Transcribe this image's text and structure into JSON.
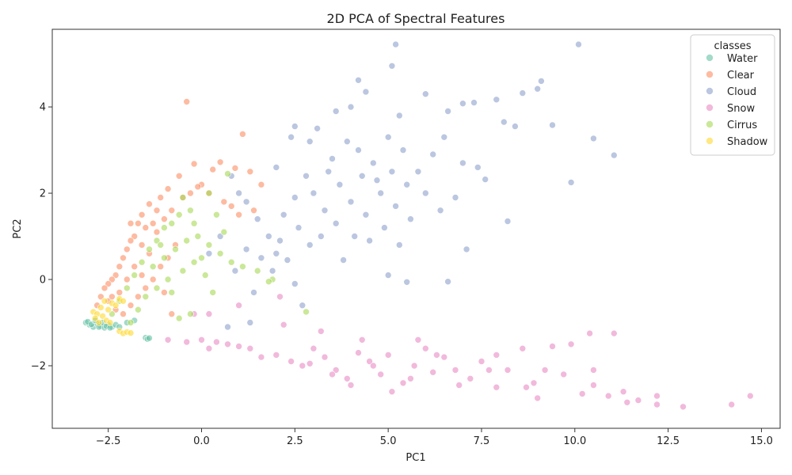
{
  "chart_data": {
    "type": "scatter",
    "title": "2D PCA of Spectral Features",
    "xlabel": "PC1",
    "ylabel": "PC2",
    "xlim": [
      -4.0,
      15.5
    ],
    "ylim": [
      -3.45,
      5.8
    ],
    "xticks": [
      -2.5,
      0.0,
      2.5,
      5.0,
      7.5,
      10.0,
      12.5,
      15.0
    ],
    "xtick_labels": [
      "−2.5",
      "0.0",
      "2.5",
      "5.0",
      "7.5",
      "10.0",
      "12.5",
      "15.0"
    ],
    "yticks": [
      -2,
      0,
      2,
      4
    ],
    "ytick_labels": [
      "−2",
      "0",
      "2",
      "4"
    ],
    "grid": false,
    "legend": {
      "title": "classes",
      "placement": "top-right"
    },
    "series": [
      {
        "name": "Water",
        "color": "#66c2a5",
        "points": [
          [
            -3.1,
            -1.0
          ],
          [
            -3.0,
            -1.05
          ],
          [
            -2.9,
            -1.1
          ],
          [
            -2.8,
            -1.02
          ],
          [
            -2.7,
            -1.08
          ],
          [
            -2.6,
            -1.12
          ],
          [
            -2.5,
            -1.05
          ],
          [
            -2.4,
            -1.1
          ],
          [
            -3.05,
            -0.98
          ],
          [
            -2.95,
            -1.04
          ],
          [
            -2.85,
            -0.95
          ],
          [
            -2.75,
            -1.1
          ],
          [
            -2.65,
            -1.0
          ],
          [
            -2.55,
            -1.08
          ],
          [
            -2.45,
            -1.12
          ],
          [
            -2.3,
            -1.05
          ],
          [
            -2.2,
            -1.1
          ],
          [
            -1.5,
            -1.35
          ],
          [
            -1.45,
            -1.38
          ],
          [
            -1.4,
            -1.36
          ],
          [
            -2.0,
            -1.0
          ],
          [
            -1.8,
            -0.95
          ]
        ]
      },
      {
        "name": "Clear",
        "color": "#fc8d62",
        "points": [
          [
            -0.4,
            4.12
          ],
          [
            1.1,
            3.37
          ],
          [
            -0.2,
            2.68
          ],
          [
            0.5,
            2.72
          ],
          [
            0.3,
            2.55
          ],
          [
            0.9,
            2.58
          ],
          [
            1.3,
            2.5
          ],
          [
            1.6,
            2.2
          ],
          [
            0.0,
            2.2
          ],
          [
            -0.6,
            2.4
          ],
          [
            -0.9,
            2.1
          ],
          [
            -1.1,
            1.9
          ],
          [
            -1.2,
            1.6
          ],
          [
            -1.4,
            1.75
          ],
          [
            -1.6,
            1.5
          ],
          [
            -1.5,
            1.2
          ],
          [
            -1.7,
            1.3
          ],
          [
            -1.8,
            1.0
          ],
          [
            -1.9,
            0.9
          ],
          [
            -1.6,
            0.8
          ],
          [
            -1.4,
            0.6
          ],
          [
            -1.2,
            1.1
          ],
          [
            -1.0,
            1.4
          ],
          [
            -0.8,
            1.6
          ],
          [
            -0.5,
            1.9
          ],
          [
            -0.3,
            2.0
          ],
          [
            -0.1,
            2.15
          ],
          [
            0.2,
            2.0
          ],
          [
            0.6,
            1.8
          ],
          [
            0.8,
            1.7
          ],
          [
            1.0,
            1.5
          ],
          [
            1.4,
            1.6
          ],
          [
            -2.0,
            0.7
          ],
          [
            -2.1,
            0.5
          ],
          [
            -2.2,
            0.3
          ],
          [
            -2.3,
            0.1
          ],
          [
            -2.4,
            0.0
          ],
          [
            -2.5,
            -0.1
          ],
          [
            -2.6,
            -0.2
          ],
          [
            -2.7,
            -0.4
          ],
          [
            -2.8,
            -0.6
          ],
          [
            -2.5,
            -0.5
          ],
          [
            -2.3,
            -0.7
          ],
          [
            -2.1,
            -0.8
          ],
          [
            -1.9,
            -0.6
          ],
          [
            -1.7,
            -0.4
          ],
          [
            -1.5,
            -0.2
          ],
          [
            -1.3,
            0.0
          ],
          [
            -1.1,
            0.3
          ],
          [
            -0.9,
            0.5
          ],
          [
            -0.7,
            0.8
          ],
          [
            -1.0,
            -0.3
          ],
          [
            -0.8,
            -0.8
          ],
          [
            -2.0,
            0.0
          ],
          [
            -1.8,
            0.3
          ],
          [
            -1.6,
            0.1
          ],
          [
            -2.2,
            -0.3
          ],
          [
            -2.4,
            -0.4
          ],
          [
            -1.9,
            1.3
          ],
          [
            -1.3,
            1.3
          ]
        ]
      },
      {
        "name": "Cloud",
        "color": "#8da0cb",
        "points": [
          [
            5.2,
            5.45
          ],
          [
            10.1,
            5.45
          ],
          [
            5.1,
            4.95
          ],
          [
            4.2,
            4.62
          ],
          [
            9.1,
            4.6
          ],
          [
            4.4,
            4.35
          ],
          [
            6.0,
            4.3
          ],
          [
            7.3,
            4.1
          ],
          [
            7.0,
            4.08
          ],
          [
            9.0,
            4.42
          ],
          [
            4.0,
            4.0
          ],
          [
            8.6,
            4.32
          ],
          [
            3.6,
            3.9
          ],
          [
            5.3,
            3.8
          ],
          [
            6.6,
            3.9
          ],
          [
            7.9,
            4.17
          ],
          [
            8.1,
            3.65
          ],
          [
            8.4,
            3.55
          ],
          [
            9.4,
            3.58
          ],
          [
            10.5,
            3.27
          ],
          [
            11.05,
            2.88
          ],
          [
            9.9,
            2.25
          ],
          [
            7.6,
            2.32
          ],
          [
            8.2,
            1.35
          ],
          [
            7.1,
            0.7
          ],
          [
            6.6,
            -0.05
          ],
          [
            5.0,
            0.1
          ],
          [
            5.5,
            -0.06
          ],
          [
            3.8,
            0.45
          ],
          [
            2.3,
            0.45
          ],
          [
            1.4,
            -0.3
          ],
          [
            1.3,
            -1.0
          ],
          [
            0.7,
            -1.1
          ],
          [
            2.7,
            -0.6
          ],
          [
            2.5,
            -0.1
          ],
          [
            2.0,
            0.6
          ],
          [
            1.8,
            1.0
          ],
          [
            1.5,
            1.4
          ],
          [
            1.2,
            1.8
          ],
          [
            1.0,
            2.0
          ],
          [
            0.8,
            2.4
          ],
          [
            2.0,
            2.6
          ],
          [
            2.4,
            3.3
          ],
          [
            2.5,
            3.55
          ],
          [
            2.9,
            3.2
          ],
          [
            3.1,
            3.5
          ],
          [
            3.5,
            2.8
          ],
          [
            3.9,
            3.2
          ],
          [
            4.2,
            3.0
          ],
          [
            4.6,
            2.7
          ],
          [
            5.0,
            3.3
          ],
          [
            5.4,
            3.0
          ],
          [
            5.8,
            2.5
          ],
          [
            6.2,
            2.9
          ],
          [
            6.5,
            3.3
          ],
          [
            7.0,
            2.7
          ],
          [
            7.4,
            2.6
          ],
          [
            3.0,
            2.0
          ],
          [
            3.3,
            1.6
          ],
          [
            3.7,
            2.2
          ],
          [
            4.0,
            1.8
          ],
          [
            4.4,
            1.5
          ],
          [
            4.8,
            2.0
          ],
          [
            5.2,
            1.7
          ],
          [
            5.6,
            1.4
          ],
          [
            6.0,
            2.0
          ],
          [
            6.4,
            1.6
          ],
          [
            6.8,
            1.9
          ],
          [
            2.6,
            1.2
          ],
          [
            2.9,
            0.8
          ],
          [
            3.2,
            1.0
          ],
          [
            3.6,
            1.3
          ],
          [
            4.1,
            1.0
          ],
          [
            4.5,
            0.9
          ],
          [
            4.9,
            1.2
          ],
          [
            5.3,
            0.8
          ],
          [
            2.2,
            1.5
          ],
          [
            2.5,
            1.9
          ],
          [
            2.8,
            2.4
          ],
          [
            3.4,
            2.5
          ],
          [
            4.3,
            2.4
          ],
          [
            4.7,
            2.3
          ],
          [
            5.1,
            2.5
          ],
          [
            5.5,
            2.2
          ],
          [
            1.6,
            0.5
          ],
          [
            1.9,
            0.2
          ],
          [
            2.1,
            0.9
          ],
          [
            0.5,
            1.0
          ],
          [
            0.2,
            0.6
          ],
          [
            0.9,
            0.2
          ],
          [
            1.2,
            0.7
          ]
        ]
      },
      {
        "name": "Snow",
        "color": "#e78ac3",
        "points": [
          [
            14.7,
            -2.7
          ],
          [
            14.2,
            -2.9
          ],
          [
            12.9,
            -2.95
          ],
          [
            12.2,
            -2.9
          ],
          [
            12.2,
            -2.7
          ],
          [
            11.7,
            -2.8
          ],
          [
            11.4,
            -2.85
          ],
          [
            11.3,
            -2.6
          ],
          [
            10.9,
            -2.7
          ],
          [
            10.5,
            -2.45
          ],
          [
            10.5,
            -2.1
          ],
          [
            10.4,
            -1.25
          ],
          [
            11.05,
            -1.25
          ],
          [
            10.2,
            -2.65
          ],
          [
            9.9,
            -1.5
          ],
          [
            9.4,
            -1.55
          ],
          [
            9.0,
            -2.75
          ],
          [
            8.7,
            -2.5
          ],
          [
            8.2,
            -2.1
          ],
          [
            7.9,
            -1.75
          ],
          [
            7.5,
            -1.9
          ],
          [
            7.2,
            -2.3
          ],
          [
            6.8,
            -2.1
          ],
          [
            6.5,
            -1.8
          ],
          [
            6.0,
            -1.6
          ],
          [
            5.7,
            -2.0
          ],
          [
            5.4,
            -2.4
          ],
          [
            5.1,
            -2.6
          ],
          [
            4.8,
            -2.2
          ],
          [
            4.5,
            -1.9
          ],
          [
            4.2,
            -1.7
          ],
          [
            3.9,
            -2.3
          ],
          [
            3.6,
            -2.1
          ],
          [
            3.3,
            -1.8
          ],
          [
            3.0,
            -1.6
          ],
          [
            2.7,
            -2.0
          ],
          [
            2.4,
            -1.9
          ],
          [
            2.0,
            -1.75
          ],
          [
            1.6,
            -1.8
          ],
          [
            1.3,
            -1.6
          ],
          [
            1.0,
            -1.55
          ],
          [
            0.7,
            -1.5
          ],
          [
            0.4,
            -1.45
          ],
          [
            0.2,
            -1.6
          ],
          [
            0.0,
            -1.4
          ],
          [
            -0.4,
            -1.45
          ],
          [
            -0.9,
            -1.4
          ],
          [
            -0.2,
            -0.8
          ],
          [
            0.2,
            -0.8
          ],
          [
            1.0,
            -0.6
          ],
          [
            2.2,
            -1.05
          ],
          [
            2.1,
            -0.4
          ],
          [
            3.2,
            -1.2
          ],
          [
            4.3,
            -1.4
          ],
          [
            5.8,
            -1.4
          ],
          [
            6.3,
            -1.75
          ],
          [
            7.7,
            -2.1
          ],
          [
            8.6,
            -1.6
          ],
          [
            9.2,
            -2.1
          ],
          [
            5.6,
            -2.3
          ],
          [
            4.0,
            -2.45
          ],
          [
            3.5,
            -2.2
          ],
          [
            2.9,
            -1.95
          ],
          [
            6.9,
            -2.45
          ],
          [
            7.9,
            -2.5
          ],
          [
            9.7,
            -2.2
          ],
          [
            8.9,
            -2.4
          ],
          [
            4.6,
            -2.0
          ],
          [
            5.0,
            -1.75
          ],
          [
            6.2,
            -2.15
          ]
        ]
      },
      {
        "name": "Cirrus",
        "color": "#a6d854",
        "points": [
          [
            -0.5,
            1.9
          ],
          [
            -0.3,
            1.6
          ],
          [
            -0.6,
            1.5
          ],
          [
            -0.8,
            1.3
          ],
          [
            -1.0,
            1.2
          ],
          [
            -1.2,
            0.9
          ],
          [
            -1.4,
            0.7
          ],
          [
            -1.6,
            0.4
          ],
          [
            -1.8,
            0.1
          ],
          [
            -2.0,
            -0.2
          ],
          [
            -2.2,
            -0.5
          ],
          [
            -2.4,
            -0.8
          ],
          [
            -1.0,
            0.5
          ],
          [
            -0.7,
            0.7
          ],
          [
            -0.4,
            0.9
          ],
          [
            -0.1,
            1.0
          ],
          [
            0.2,
            0.8
          ],
          [
            0.5,
            0.6
          ],
          [
            0.8,
            0.4
          ],
          [
            1.1,
            0.3
          ],
          [
            1.5,
            0.2
          ],
          [
            1.9,
            0.0
          ],
          [
            -0.5,
            0.2
          ],
          [
            -0.2,
            0.4
          ],
          [
            0.1,
            0.1
          ],
          [
            -0.9,
            0.0
          ],
          [
            -1.2,
            -0.2
          ],
          [
            -1.5,
            -0.4
          ],
          [
            -1.7,
            -0.7
          ],
          [
            -1.9,
            -1.0
          ],
          [
            -0.3,
            -0.8
          ],
          [
            -0.6,
            -0.9
          ],
          [
            0.3,
            -0.3
          ],
          [
            0.7,
            2.45
          ],
          [
            0.2,
            2.0
          ],
          [
            0.4,
            1.5
          ],
          [
            -0.2,
            1.3
          ],
          [
            1.8,
            -0.05
          ],
          [
            2.8,
            -0.75
          ],
          [
            -1.3,
            0.3
          ],
          [
            -0.8,
            -0.3
          ],
          [
            0.0,
            0.5
          ],
          [
            -1.1,
            0.8
          ],
          [
            0.6,
            1.1
          ]
        ]
      },
      {
        "name": "Shadow",
        "color": "#ffd92f",
        "points": [
          [
            -2.9,
            -0.75
          ],
          [
            -2.8,
            -0.8
          ],
          [
            -2.7,
            -0.65
          ],
          [
            -2.6,
            -0.5
          ],
          [
            -2.5,
            -0.7
          ],
          [
            -2.4,
            -0.55
          ],
          [
            -2.3,
            -0.6
          ],
          [
            -2.2,
            -0.45
          ],
          [
            -2.1,
            -0.5
          ],
          [
            -2.85,
            -0.9
          ],
          [
            -2.75,
            -1.0
          ],
          [
            -2.65,
            -0.85
          ],
          [
            -2.2,
            -1.2
          ],
          [
            -2.1,
            -1.25
          ],
          [
            -2.0,
            -1.22
          ],
          [
            -1.9,
            -1.24
          ],
          [
            -2.55,
            -0.95
          ],
          [
            -2.45,
            -1.0
          ]
        ]
      }
    ]
  }
}
